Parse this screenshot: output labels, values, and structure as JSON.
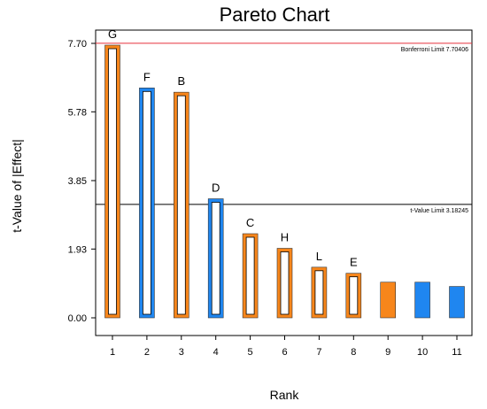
{
  "chart_data": {
    "type": "bar",
    "title": "Pareto Chart",
    "xlabel": "Rank",
    "ylabel": "t-Value of |Effect|",
    "ylim": [
      0,
      8.35
    ],
    "yticks": [
      "0.00",
      "1.93",
      "3.85",
      "5.78",
      "7.70"
    ],
    "categories": [
      "1",
      "2",
      "3",
      "4",
      "5",
      "6",
      "7",
      "8",
      "9",
      "10",
      "11"
    ],
    "values": [
      7.65,
      6.45,
      6.33,
      3.34,
      2.36,
      1.95,
      1.42,
      1.25,
      1.0,
      1.0,
      0.88
    ],
    "bar_labels": [
      "G",
      "F",
      "B",
      "D",
      "C",
      "H",
      "L",
      "E",
      "",
      "",
      ""
    ],
    "bar_colors": [
      "#f7861b",
      "#1f86f0",
      "#f7861b",
      "#1f86f0",
      "#f7861b",
      "#f7861b",
      "#f7861b",
      "#f7861b",
      "#f7861b",
      "#1f86f0",
      "#1f86f0"
    ],
    "bar_filled": [
      false,
      false,
      false,
      false,
      false,
      false,
      false,
      false,
      true,
      true,
      true
    ],
    "limits": [
      {
        "label": "Bonferroni Limit 7.70406",
        "value": 7.70406,
        "color": "#e8323c"
      },
      {
        "label": "t-Value Limit 3.18245",
        "value": 3.18245,
        "color": "#000000"
      }
    ],
    "grid": false,
    "legend": "none"
  }
}
